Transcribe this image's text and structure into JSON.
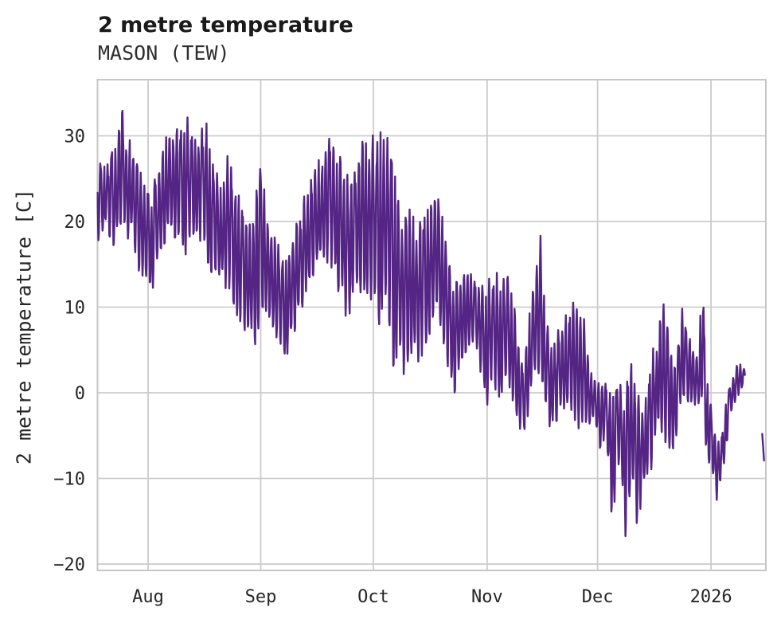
{
  "chart_data": {
    "type": "line",
    "title": "2 metre temperature",
    "subtitle": "MASON (TEW)",
    "xlabel": "",
    "ylabel": "2 metre temperature [C]",
    "legend": null,
    "grid": true,
    "line_color": "#542584",
    "grid_color": "#cbcbcb",
    "border_color": "#c6c6c6",
    "text_color": "#262626",
    "background_color": "#ffffff",
    "x_axis": {
      "range_days": [
        0,
        183.9
      ],
      "ticks": [
        {
          "label": "Aug",
          "day": 13.9
        },
        {
          "label": "Sep",
          "day": 44.9
        },
        {
          "label": "Oct",
          "day": 75.9
        },
        {
          "label": "Nov",
          "day": 107.2
        },
        {
          "label": "Dec",
          "day": 137.6
        },
        {
          "label": "2026",
          "day": 168.8
        }
      ]
    },
    "y_axis": {
      "range": [
        -20.74,
        36.56
      ],
      "ticks": [
        {
          "label": "30",
          "value": 30
        },
        {
          "label": "20",
          "value": 20
        },
        {
          "label": "10",
          "value": 10
        },
        {
          "label": "0",
          "value": 0
        },
        {
          "label": "−10",
          "value": -10
        },
        {
          "label": "−20",
          "value": -20
        }
      ]
    },
    "sampling_hours": 3,
    "series": [
      {
        "name": "2 metre temperature",
        "envelope_points": [
          [
            0,
            17.5,
            26.5
          ],
          [
            2.7,
            19,
            27.5
          ],
          [
            4.9,
            16.5,
            28.5
          ],
          [
            6.5,
            20,
            34.3
          ],
          [
            7.8,
            18.5,
            29.5
          ],
          [
            9.3,
            17,
            30
          ],
          [
            11.5,
            14,
            26.5
          ],
          [
            14.8,
            10.8,
            24
          ],
          [
            17,
            15,
            27.5
          ],
          [
            19.6,
            18,
            31.5
          ],
          [
            22.4,
            16.5,
            31.8
          ],
          [
            25.1,
            16,
            32.2
          ],
          [
            27.9,
            18,
            30.5
          ],
          [
            29.7,
            16,
            32.7
          ],
          [
            31.4,
            14,
            27
          ],
          [
            34.1,
            12.5,
            24.5
          ],
          [
            36,
            12,
            28.2
          ],
          [
            37.8,
            9,
            24
          ],
          [
            40,
            6.8,
            22
          ],
          [
            42.2,
            6,
            21
          ],
          [
            43.7,
            5.4,
            23.5
          ],
          [
            44.9,
            10,
            26.5
          ],
          [
            46.5,
            8,
            22
          ],
          [
            48.7,
            6.5,
            18.5
          ],
          [
            51.4,
            3.1,
            16
          ],
          [
            53.1,
            6,
            17.5
          ],
          [
            55.3,
            8.3,
            20.5
          ],
          [
            57.5,
            11,
            24.5
          ],
          [
            59.7,
            13,
            27
          ],
          [
            61.9,
            14,
            28.5
          ],
          [
            63.6,
            15.5,
            29.8
          ],
          [
            65.6,
            13,
            28
          ],
          [
            67.3,
            10,
            27.5
          ],
          [
            68.9,
            6.8,
            26
          ],
          [
            70.6,
            10.5,
            28
          ],
          [
            72.8,
            12,
            29.3
          ],
          [
            74.3,
            10.7,
            29.5
          ],
          [
            75.9,
            11,
            30.2
          ],
          [
            77.8,
            6.8,
            30.5
          ],
          [
            79.8,
            11,
            30.4
          ],
          [
            81.1,
            1.8,
            28
          ],
          [
            82.7,
            5,
            22.5
          ],
          [
            84.2,
            2.1,
            20
          ],
          [
            86,
            4.5,
            21.5
          ],
          [
            87.9,
            4,
            19.5
          ],
          [
            89.7,
            2.2,
            21.9
          ],
          [
            91.4,
            6.8,
            23
          ],
          [
            93.6,
            8,
            25.5
          ],
          [
            95.4,
            4,
            20
          ],
          [
            96.9,
            1,
            15.5
          ],
          [
            98,
            -0.9,
            14
          ],
          [
            99.8,
            3,
            13.5
          ],
          [
            101.9,
            5.5,
            14
          ],
          [
            103.9,
            4.5,
            13.8
          ],
          [
            105.7,
            2,
            12.5
          ],
          [
            107.2,
            -2.1,
            13
          ],
          [
            108.9,
            1,
            14
          ],
          [
            110.5,
            -2.4,
            14.4
          ],
          [
            112.2,
            2,
            13.5
          ],
          [
            114,
            -1,
            13.6
          ],
          [
            115.5,
            -4,
            7
          ],
          [
            117.1,
            -6.7,
            3.5
          ],
          [
            118.4,
            -3,
            8
          ],
          [
            119.9,
            0.5,
            13
          ],
          [
            121.9,
            2,
            18.4
          ],
          [
            123.2,
            -1.5,
            9
          ],
          [
            124.3,
            -4.4,
            7
          ],
          [
            125.8,
            -3.8,
            6
          ],
          [
            127.6,
            -2.5,
            8.5
          ],
          [
            129.1,
            -3,
            9.5
          ],
          [
            130.4,
            -2,
            10.9
          ],
          [
            132.2,
            -4.2,
            9.5
          ],
          [
            133.7,
            -3.8,
            9.3
          ],
          [
            135.2,
            -4.6,
            4
          ],
          [
            136.8,
            -3.3,
            1.9
          ],
          [
            138.1,
            -7.9,
            2
          ],
          [
            139.6,
            -5,
            1.5
          ],
          [
            141.6,
            -15,
            0.5
          ],
          [
            143.6,
            -8,
            1.4
          ],
          [
            145.3,
            -17,
            0.5
          ],
          [
            146.9,
            -9.7,
            3.4
          ],
          [
            148.6,
            -18,
            1
          ],
          [
            150.1,
            -11.7,
            -1.4
          ],
          [
            151.6,
            -11,
            2
          ],
          [
            153.2,
            -7,
            6
          ],
          [
            154.5,
            -4,
            9
          ],
          [
            156,
            -6,
            10.6
          ],
          [
            157.6,
            -6.5,
            5
          ],
          [
            158.9,
            -6.5,
            3
          ],
          [
            160.9,
            -1,
            10.6
          ],
          [
            162.4,
            -2,
            7.5
          ],
          [
            163.9,
            -0.5,
            5
          ],
          [
            165.2,
            -3,
            4
          ],
          [
            166.3,
            -1,
            13.9
          ],
          [
            167.7,
            -8,
            2
          ],
          [
            169.2,
            -10.5,
            -2
          ],
          [
            170.3,
            -12.9,
            -5
          ],
          [
            171.8,
            -10,
            -4.5
          ],
          [
            173.1,
            -6,
            -0.7
          ],
          [
            174.4,
            -2,
            1.5
          ],
          [
            176,
            -0.5,
            3.4
          ],
          [
            177.5,
            0.4,
            3.3
          ],
          [
            178.2,
            1,
            2.6
          ]
        ]
      },
      {
        "name": "2 metre temperature (trailing segment after data gap)",
        "envelope_points": [
          [
            182.9,
            -4.8,
            -4.8
          ],
          [
            183.4,
            -7.9,
            -7.9
          ]
        ]
      }
    ]
  }
}
